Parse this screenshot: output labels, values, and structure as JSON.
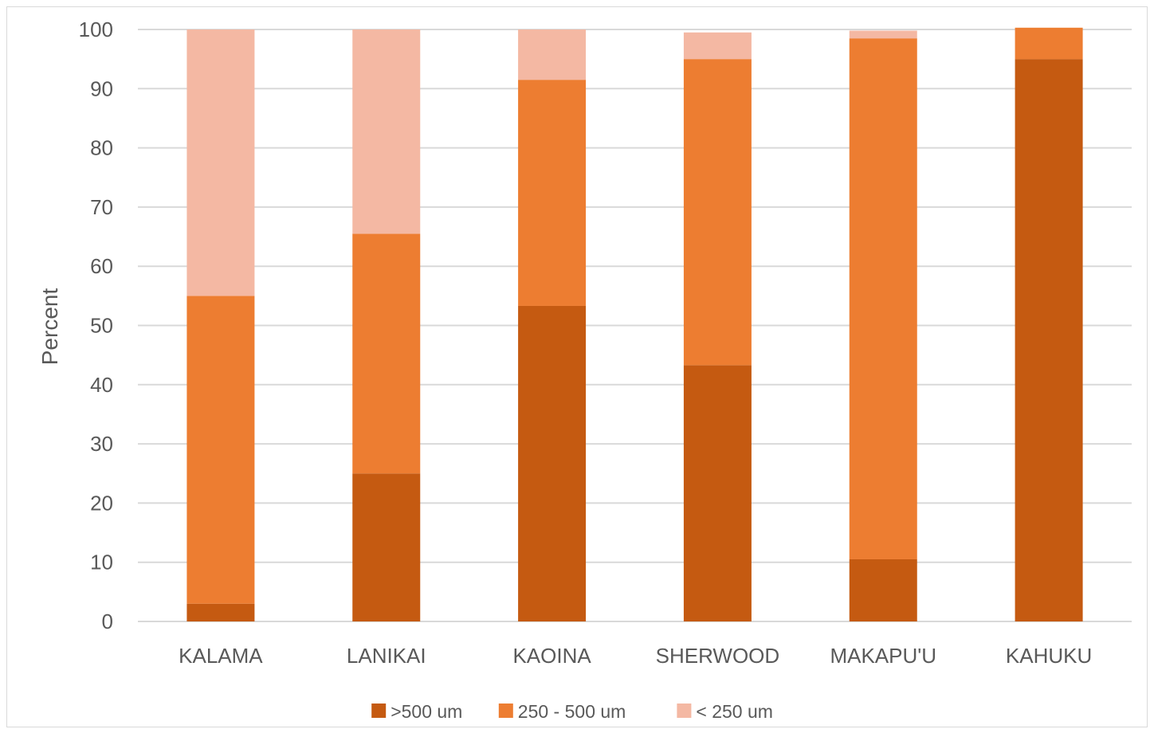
{
  "chart_data": {
    "type": "bar",
    "stacked": true,
    "title": "",
    "xlabel": "",
    "ylabel": "Percent",
    "ylim": [
      0,
      100
    ],
    "yticks": [
      0,
      10,
      20,
      30,
      40,
      50,
      60,
      70,
      80,
      90,
      100
    ],
    "grid": true,
    "legend_position": "bottom",
    "categories": [
      "KALAMA",
      "LANIKAI",
      "KAOINA",
      "SHERWOOD",
      "MAKAPU'U",
      "KAHUKU"
    ],
    "series": [
      {
        "name": ">500 um",
        "color": "#c55a11",
        "values": [
          3,
          25,
          53.3,
          43.3,
          10.5,
          95
        ]
      },
      {
        "name": "250 - 500 um",
        "color": "#ed7d31",
        "values": [
          52,
          40.5,
          38.2,
          51.7,
          88,
          5.3
        ]
      },
      {
        "name": "< 250 um",
        "color": "#f4b8a3",
        "values": [
          45,
          34.5,
          8.5,
          4.5,
          1.3,
          0
        ]
      }
    ]
  }
}
